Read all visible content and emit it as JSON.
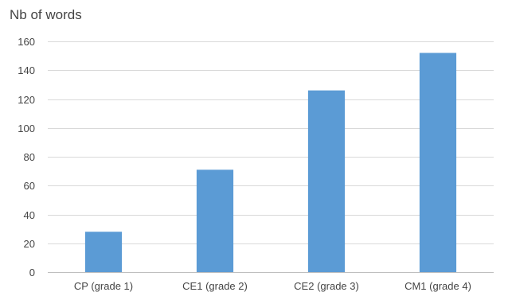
{
  "chart_data": {
    "type": "bar",
    "title": "",
    "xlabel": "",
    "ylabel": "Nb of words",
    "categories": [
      "CP (grade 1)",
      "CE1 (grade 2)",
      "CE2 (grade 3)",
      "CM1 (grade 4)"
    ],
    "values": [
      28,
      71,
      126,
      152
    ],
    "ylim": [
      0,
      160
    ],
    "yticks": [
      0,
      20,
      40,
      60,
      80,
      100,
      120,
      140,
      160
    ],
    "grid": true,
    "legend": "none",
    "colors": {
      "bar": "#5b9bd5",
      "grid": "#d9d9d9",
      "axis": "#bfbfbf",
      "text": "#444444"
    }
  }
}
